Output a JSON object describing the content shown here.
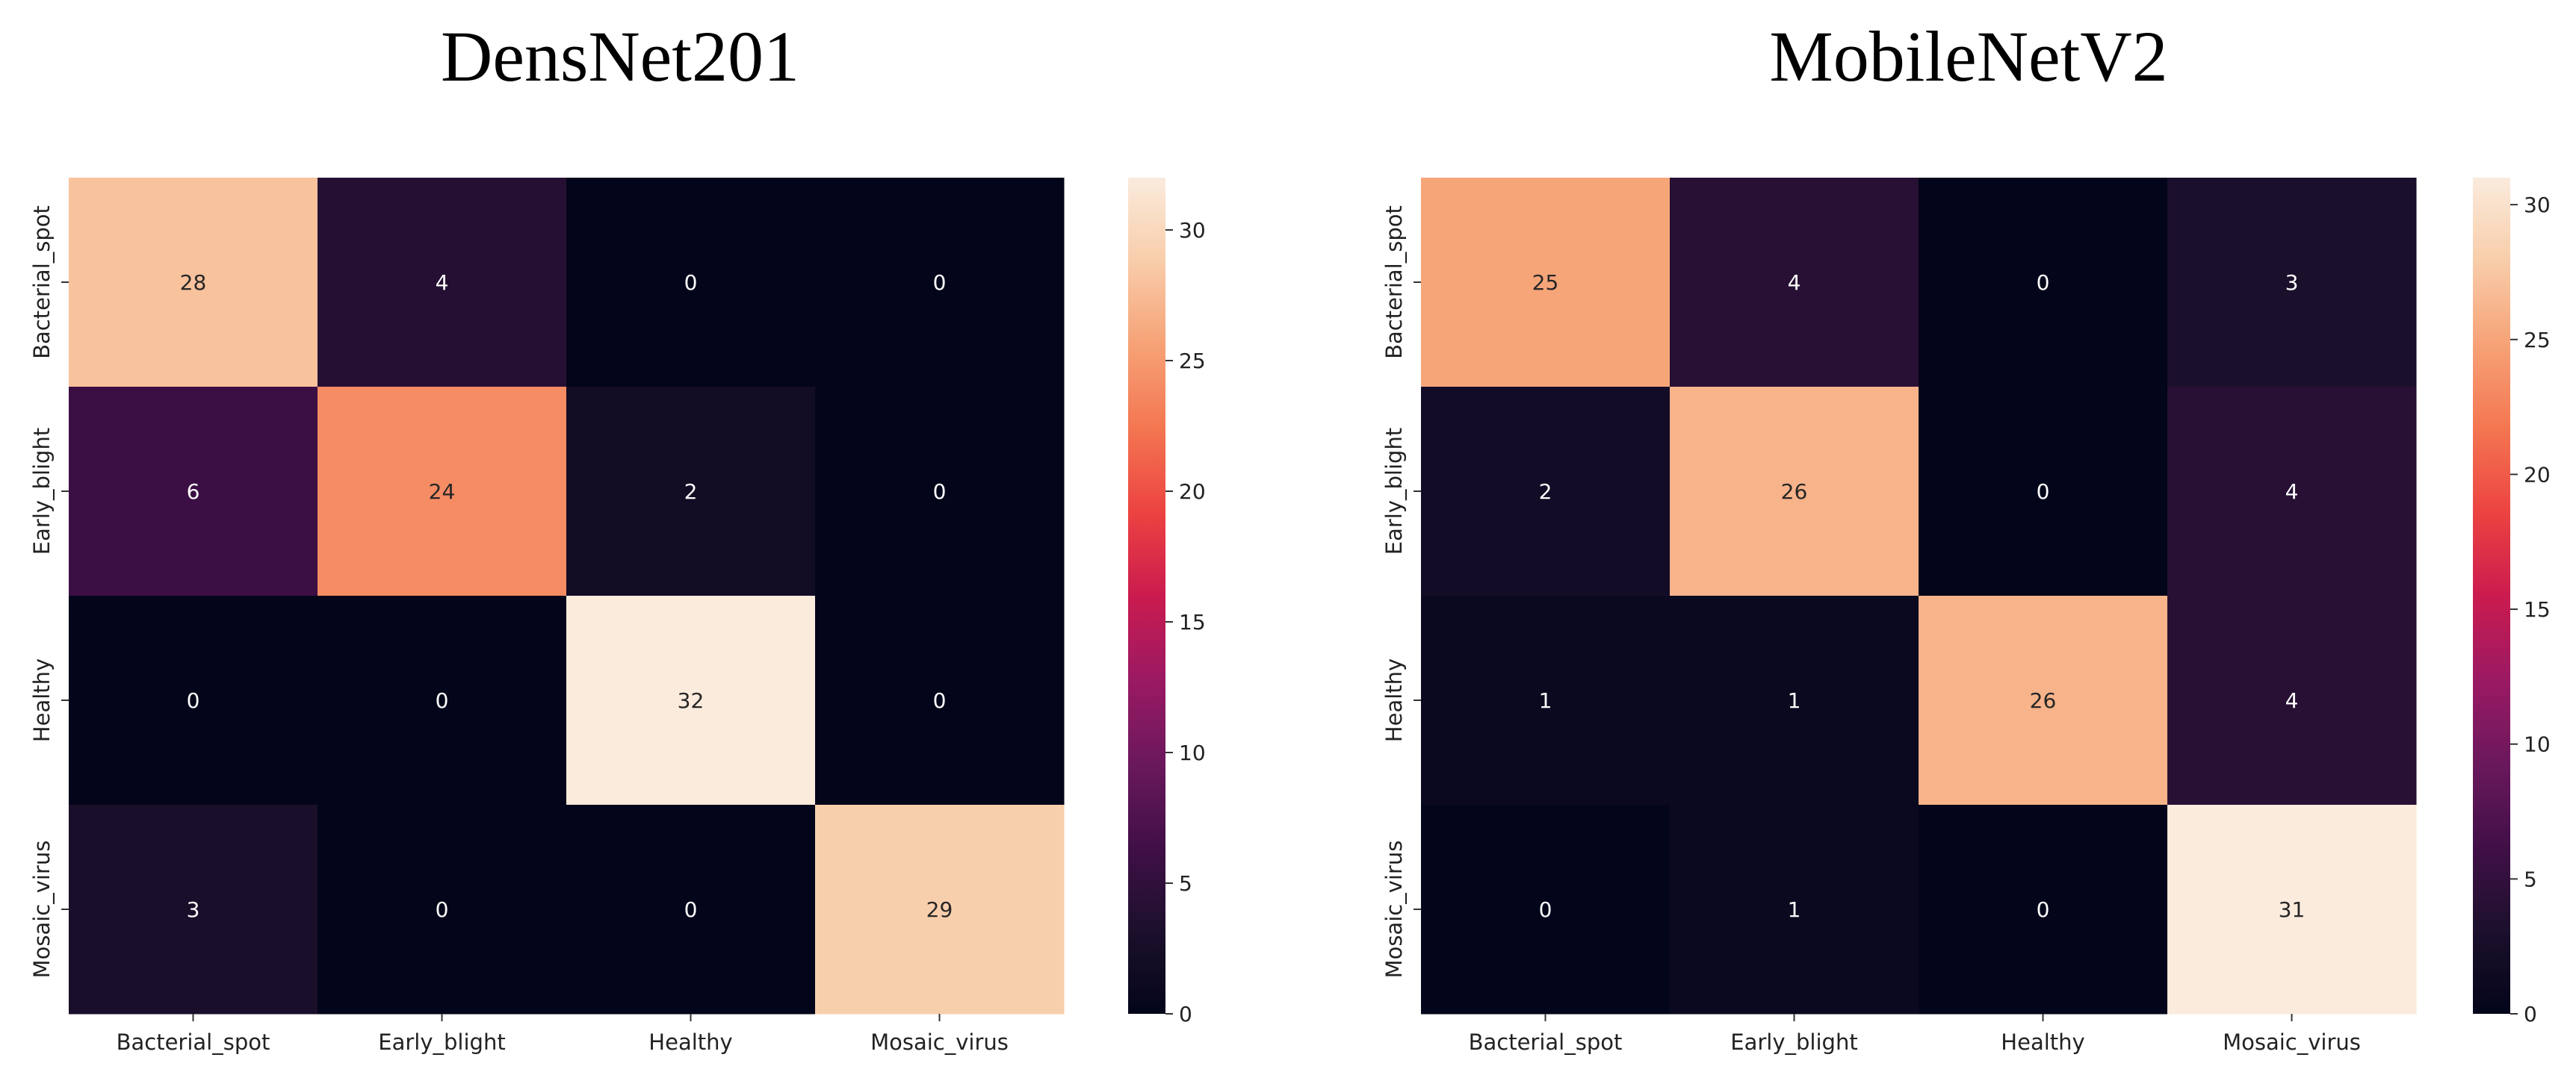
{
  "chart_data": [
    {
      "type": "heatmap",
      "title": "DensNet201",
      "row_labels": [
        "Bacterial_spot",
        "Early_blight",
        "Healthy",
        "Mosaic_virus"
      ],
      "col_labels": [
        "Bacterial_spot",
        "Early_blight",
        "Healthy",
        "Mosaic_virus"
      ],
      "values": [
        [
          28,
          4,
          0,
          0
        ],
        [
          6,
          24,
          2,
          0
        ],
        [
          0,
          0,
          32,
          0
        ],
        [
          3,
          0,
          0,
          29
        ]
      ],
      "colorbar": {
        "min": 0,
        "max": 32,
        "ticks": [
          0,
          5,
          10,
          15,
          20,
          25,
          30
        ]
      },
      "colormap": "rocket"
    },
    {
      "type": "heatmap",
      "title": "MobileNetV2",
      "row_labels": [
        "Bacterial_spot",
        "Early_blight",
        "Healthy",
        "Mosaic_virus"
      ],
      "col_labels": [
        "Bacterial_spot",
        "Early_blight",
        "Healthy",
        "Mosaic_virus"
      ],
      "values": [
        [
          25,
          4,
          0,
          3
        ],
        [
          2,
          26,
          0,
          4
        ],
        [
          1,
          1,
          26,
          4
        ],
        [
          0,
          1,
          0,
          31
        ]
      ],
      "colorbar": {
        "min": 0,
        "max": 31,
        "ticks": [
          0,
          5,
          10,
          15,
          20,
          25,
          30
        ]
      },
      "colormap": "rocket"
    }
  ]
}
